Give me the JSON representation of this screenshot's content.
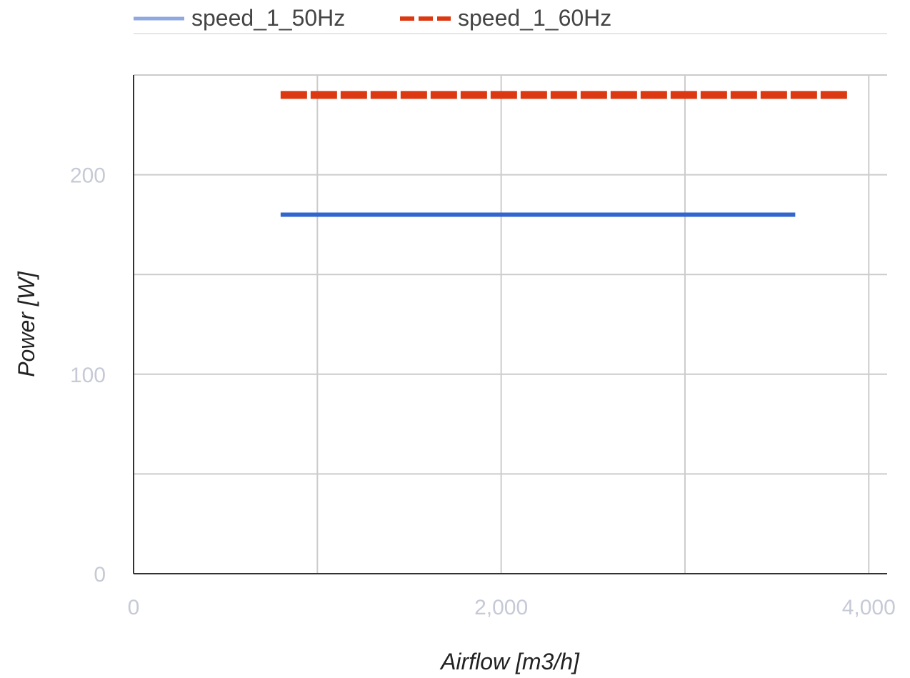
{
  "chart_data": {
    "type": "line",
    "title": "",
    "xlabel": "Airflow [m3/h]",
    "ylabel": "Power [W]",
    "xlim": [
      0,
      4100
    ],
    "ylim": [
      0,
      250
    ],
    "x_ticks": [
      0,
      2000,
      4000
    ],
    "x_tick_labels": [
      "0",
      "2,000",
      "4,000"
    ],
    "y_ticks": [
      0,
      100,
      200
    ],
    "y_tick_labels": [
      "0",
      "100",
      "200"
    ],
    "x_minor_gridlines": [
      1000,
      3000
    ],
    "y_minor_gridlines": [
      50,
      150,
      250
    ],
    "grid": true,
    "legend": "top",
    "series": [
      {
        "name": "speed_1_50Hz",
        "color": "#3366cc",
        "legend_color": "#8fa9e0",
        "dash": "solid",
        "x": [
          800,
          3600
        ],
        "y": [
          180,
          180
        ]
      },
      {
        "name": "speed_1_60Hz",
        "color": "#dc3912",
        "legend_color": "#dc3912",
        "dash": "dashed",
        "x": [
          800,
          3900
        ],
        "y": [
          240,
          240
        ]
      }
    ]
  }
}
